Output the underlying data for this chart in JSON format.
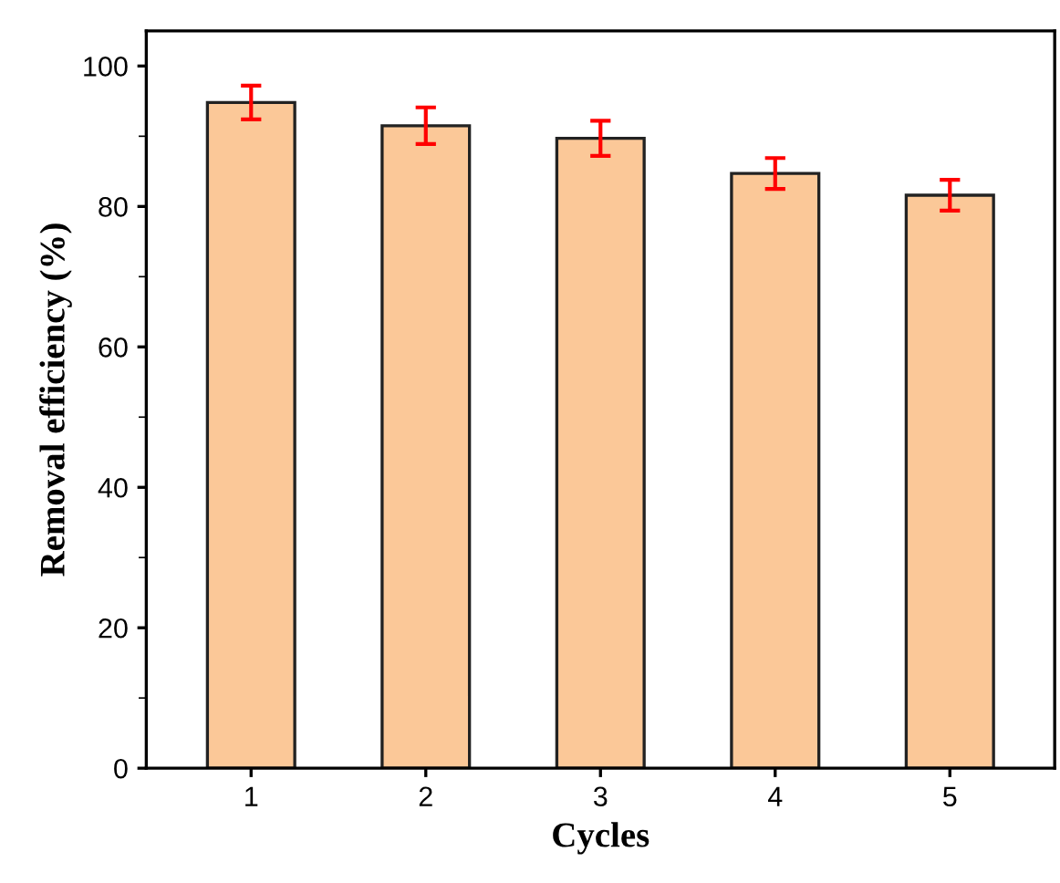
{
  "chart_data": {
    "type": "bar",
    "xlabel": "Cycles",
    "ylabel": "Removal efficiency (%)",
    "categories": [
      "1",
      "2",
      "3",
      "4",
      "5"
    ],
    "values": [
      94.8,
      91.5,
      89.7,
      84.7,
      81.6
    ],
    "errors": [
      2.4,
      2.6,
      2.5,
      2.2,
      2.2
    ],
    "color": "#fbc898",
    "ylim": [
      0,
      105
    ],
    "yticks": [
      0,
      20,
      40,
      60,
      80,
      100
    ],
    "grid": false,
    "legend": false
  }
}
